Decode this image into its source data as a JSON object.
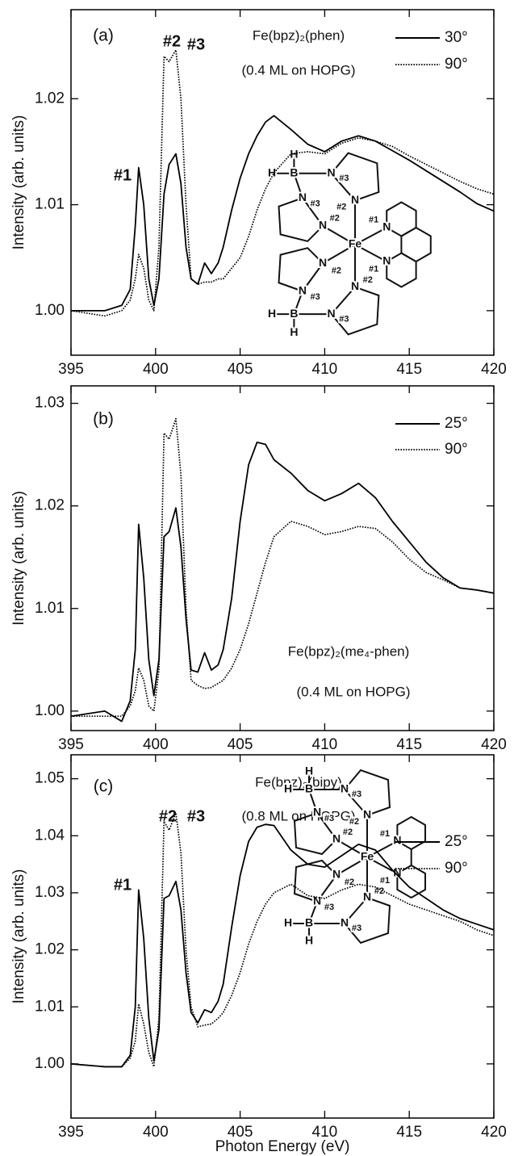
{
  "chart_data": [
    {
      "type": "line",
      "panel_label": "(a)",
      "title": "Fe(bpz)₂(phen)",
      "subtitle": "(0.4 ML on HOPG)",
      "ylabel": "Intensity (arb. units)",
      "xlim": [
        395,
        420
      ],
      "xticks": [
        395,
        400,
        405,
        410,
        415,
        420
      ],
      "ylim": [
        0.9958,
        1.0284
      ],
      "yticks": [
        {
          "value": 1,
          "label": "1.00"
        },
        1.01,
        1.02
      ],
      "x": [
        395,
        397,
        398,
        398.5,
        398.8,
        399,
        399.3,
        399.6,
        399.9,
        400.2,
        400.5,
        400.8,
        401.2,
        401.5,
        401.8,
        402.1,
        402.5,
        402.9,
        403.3,
        403.7,
        404,
        404.5,
        405,
        405.5,
        406,
        406.5,
        407,
        408,
        409,
        410,
        411,
        412,
        413,
        414,
        415,
        416,
        417,
        418,
        419,
        420
      ],
      "series": [
        {
          "name": "30°",
          "color": "#000000",
          "linestyle": "solid",
          "values": [
            1,
            1,
            1.0005,
            1.002,
            1.008,
            1.0135,
            1.01,
            1.003,
            1.0005,
            1.003,
            1.011,
            1.0138,
            1.0148,
            1.012,
            1.006,
            1.003,
            1.0025,
            1.0045,
            1.0035,
            1.0045,
            1.006,
            1.0095,
            1.0125,
            1.0148,
            1.0165,
            1.0178,
            1.0184,
            1.0171,
            1.0157,
            1.015,
            1.016,
            1.0165,
            1.016,
            1.0151,
            1.0142,
            1.0132,
            1.0122,
            1.0112,
            1.0101,
            1.0094
          ]
        },
        {
          "name": "90°",
          "color": "#000000",
          "linestyle": "dotted",
          "values": [
            1,
            0.9995,
            1,
            1.001,
            1.003,
            1.0053,
            1.004,
            1.001,
            1,
            1.006,
            1.024,
            1.0235,
            1.0246,
            1.02,
            1.01,
            1.003,
            1.0025,
            1.0027,
            1.0027,
            1.003,
            1.003,
            1.004,
            1.005,
            1.007,
            1.0095,
            1.0115,
            1.013,
            1.0148,
            1.015,
            1.0148,
            1.0158,
            1.0163,
            1.016,
            1.0155,
            1.0146,
            1.0138,
            1.013,
            1.0122,
            1.0115,
            1.011
          ]
        }
      ],
      "annotations": [
        {
          "text": "#1",
          "color": "#b54fa6"
        },
        {
          "text": "#2",
          "color": "#4fb04f"
        },
        {
          "text": "#3",
          "color": "#e53a2f"
        }
      ],
      "molecule_labels": [
        {
          "text": "H",
          "color": "#000000"
        },
        {
          "text": "H",
          "color": "#000000"
        },
        {
          "text": "B",
          "color": "#000000"
        },
        {
          "text": "N",
          "color": "#2b4aa0"
        },
        {
          "text": "#3",
          "color": "#e53a2f"
        },
        {
          "text": "N",
          "color": "#2b4aa0"
        },
        {
          "text": "#2",
          "color": "#4fb04f"
        },
        {
          "text": "N",
          "color": "#2b4aa0"
        },
        {
          "text": "#3",
          "color": "#e53a2f"
        },
        {
          "text": "N",
          "color": "#2b4aa0"
        },
        {
          "text": "#2",
          "color": "#4fb04f"
        },
        {
          "text": "Fe",
          "color": "#000000"
        },
        {
          "text": "N",
          "color": "#2b4aa0"
        },
        {
          "text": "#1",
          "color": "#b54fa6"
        },
        {
          "text": "N",
          "color": "#2b4aa0"
        },
        {
          "text": "#1",
          "color": "#b54fa6"
        },
        {
          "text": "N",
          "color": "#2b4aa0"
        },
        {
          "text": "#2",
          "color": "#4fb04f"
        },
        {
          "text": "N",
          "color": "#2b4aa0"
        },
        {
          "text": "#3",
          "color": "#e53a2f"
        },
        {
          "text": "H",
          "color": "#000000"
        },
        {
          "text": "B",
          "color": "#000000"
        },
        {
          "text": "H",
          "color": "#000000"
        },
        {
          "text": "N",
          "color": "#2b4aa0"
        },
        {
          "text": "#3",
          "color": "#e53a2f"
        },
        {
          "text": "N",
          "color": "#2b4aa0"
        },
        {
          "text": "#2",
          "color": "#4fb04f"
        }
      ]
    },
    {
      "type": "line",
      "panel_label": "(b)",
      "title": "Fe(bpz)₂(me₄-phen)",
      "subtitle": "(0.4 ML on HOPG)",
      "ylabel": "Intensity (arb. units)",
      "xlim": [
        395,
        420
      ],
      "xticks": [
        395,
        400,
        405,
        410,
        415,
        420
      ],
      "ylim": [
        0.9981,
        1.0317
      ],
      "yticks": [
        {
          "value": 1,
          "label": "1.00"
        },
        1.01,
        1.02,
        1.03
      ],
      "x": [
        395,
        397,
        398,
        398.5,
        398.8,
        399,
        399.3,
        399.6,
        399.9,
        400.2,
        400.5,
        400.8,
        401.2,
        401.5,
        401.8,
        402.1,
        402.5,
        402.9,
        403.3,
        403.7,
        404,
        404.5,
        405,
        405.5,
        406,
        406.5,
        407,
        408,
        409,
        410,
        411,
        412,
        413,
        414,
        415,
        416,
        417,
        418,
        419,
        420
      ],
      "series": [
        {
          "name": "25°",
          "color": "#000000",
          "linestyle": "solid",
          "values": [
            0.9995,
            1,
            0.999,
            1.001,
            1.006,
            1.0182,
            1.013,
            1.005,
            1.0015,
            1.005,
            1.017,
            1.0175,
            1.0198,
            1.016,
            1.009,
            1.004,
            1.0038,
            1.0057,
            1.004,
            1.0045,
            1.006,
            1.011,
            1.0185,
            1.024,
            1.0262,
            1.026,
            1.0245,
            1.0232,
            1.0215,
            1.0205,
            1.0212,
            1.0222,
            1.0208,
            1.0185,
            1.0165,
            1.0145,
            1.013,
            1.012,
            1.0118,
            1.0115
          ]
        },
        {
          "name": "90°",
          "color": "#000000",
          "linestyle": "dotted",
          "values": [
            0.9995,
            0.9995,
            0.9995,
            1.0005,
            1.002,
            1.0042,
            1.003,
            1.0005,
            1,
            1.004,
            1.0271,
            1.0265,
            1.0285,
            1.023,
            1.01,
            1.003,
            1.0025,
            1.0022,
            1.0023,
            1.0027,
            1.003,
            1.0042,
            1.006,
            1.0085,
            1.0115,
            1.0145,
            1.017,
            1.0185,
            1.018,
            1.0172,
            1.0175,
            1.018,
            1.0178,
            1.0165,
            1.0148,
            1.0135,
            1.0128,
            1.012,
            1.0118,
            1.0115
          ]
        }
      ]
    },
    {
      "type": "line",
      "panel_label": "(c)",
      "title": "Fe(bpz)₂(bipy)",
      "subtitle": "(0.8 ML on HOPG)",
      "ylabel": "Intensity (arb. units)",
      "xlabel": "Photon Energy (eV)",
      "xlim": [
        395,
        420
      ],
      "xticks": [
        395,
        400,
        405,
        410,
        415,
        420
      ],
      "ylim": [
        0.9905,
        1.0542
      ],
      "yticks": [
        {
          "value": 1,
          "label": "1.00"
        },
        1.01,
        1.02,
        1.03,
        1.04,
        1.05
      ],
      "x": [
        395,
        397,
        398,
        398.5,
        398.8,
        399,
        399.3,
        399.6,
        399.9,
        400.2,
        400.5,
        400.8,
        401.2,
        401.5,
        401.8,
        402.1,
        402.5,
        402.9,
        403.3,
        403.7,
        404,
        404.5,
        405,
        405.5,
        406,
        406.5,
        407,
        408,
        409,
        410,
        411,
        412,
        413,
        414,
        415,
        416,
        417,
        418,
        419,
        420
      ],
      "series": [
        {
          "name": "25°",
          "color": "#000000",
          "linestyle": "solid",
          "values": [
            1,
            0.9995,
            0.9995,
            1.0015,
            1.01,
            1.0305,
            1.022,
            1.008,
            1.0005,
            1.006,
            1.029,
            1.0295,
            1.032,
            1.027,
            1.016,
            1.009,
            1.0072,
            1.0095,
            1.009,
            1.011,
            1.014,
            1.024,
            1.033,
            1.039,
            1.0415,
            1.042,
            1.0418,
            1.0375,
            1.035,
            1.0345,
            1.0365,
            1.0385,
            1.0375,
            1.034,
            1.031,
            1.029,
            1.027,
            1.0255,
            1.0245,
            1.0235
          ]
        },
        {
          "name": "90°",
          "color": "#000000",
          "linestyle": "dotted",
          "values": [
            1,
            0.9995,
            0.9995,
            1.001,
            1.004,
            1.0105,
            1.007,
            1.002,
            0.9995,
            1.008,
            1.0425,
            1.041,
            1.044,
            1.037,
            1.02,
            1.01,
            1.0065,
            1.0068,
            1.007,
            1.008,
            1.009,
            1.012,
            1.016,
            1.021,
            1.025,
            1.028,
            1.03,
            1.0315,
            1.0295,
            1.029,
            1.0305,
            1.0315,
            1.031,
            1.0295,
            1.028,
            1.027,
            1.026,
            1.025,
            1.0235,
            1.0225
          ]
        }
      ],
      "annotations": [
        {
          "text": "#1",
          "color": "#b54fa6"
        },
        {
          "text": "#2",
          "color": "#4fb04f"
        },
        {
          "text": "#3",
          "color": "#e53a2f"
        }
      ],
      "molecule_labels": [
        {
          "text": "H",
          "color": "#000000"
        },
        {
          "text": "H",
          "color": "#000000"
        },
        {
          "text": "B",
          "color": "#000000"
        },
        {
          "text": "N",
          "color": "#2b4aa0"
        },
        {
          "text": "#3",
          "color": "#e53a2f"
        },
        {
          "text": "N",
          "color": "#2b4aa0"
        },
        {
          "text": "#2",
          "color": "#4fb04f"
        },
        {
          "text": "N",
          "color": "#2b4aa0"
        },
        {
          "text": "#3",
          "color": "#e53a2f"
        },
        {
          "text": "N",
          "color": "#2b4aa0"
        },
        {
          "text": "#2",
          "color": "#4fb04f"
        },
        {
          "text": "Fe",
          "color": "#000000"
        },
        {
          "text": "N",
          "color": "#2b4aa0"
        },
        {
          "text": "#1",
          "color": "#b54fa6"
        },
        {
          "text": "N",
          "color": "#2b4aa0"
        },
        {
          "text": "#1",
          "color": "#b54fa6"
        },
        {
          "text": "N",
          "color": "#2b4aa0"
        },
        {
          "text": "#2",
          "color": "#4fb04f"
        },
        {
          "text": "N",
          "color": "#2b4aa0"
        },
        {
          "text": "#3",
          "color": "#e53a2f"
        },
        {
          "text": "H",
          "color": "#000000"
        },
        {
          "text": "B",
          "color": "#000000"
        },
        {
          "text": "H",
          "color": "#000000"
        },
        {
          "text": "N",
          "color": "#2b4aa0"
        },
        {
          "text": "#3",
          "color": "#e53a2f"
        },
        {
          "text": "N",
          "color": "#2b4aa0"
        },
        {
          "text": "#2",
          "color": "#4fb04f"
        }
      ]
    }
  ]
}
